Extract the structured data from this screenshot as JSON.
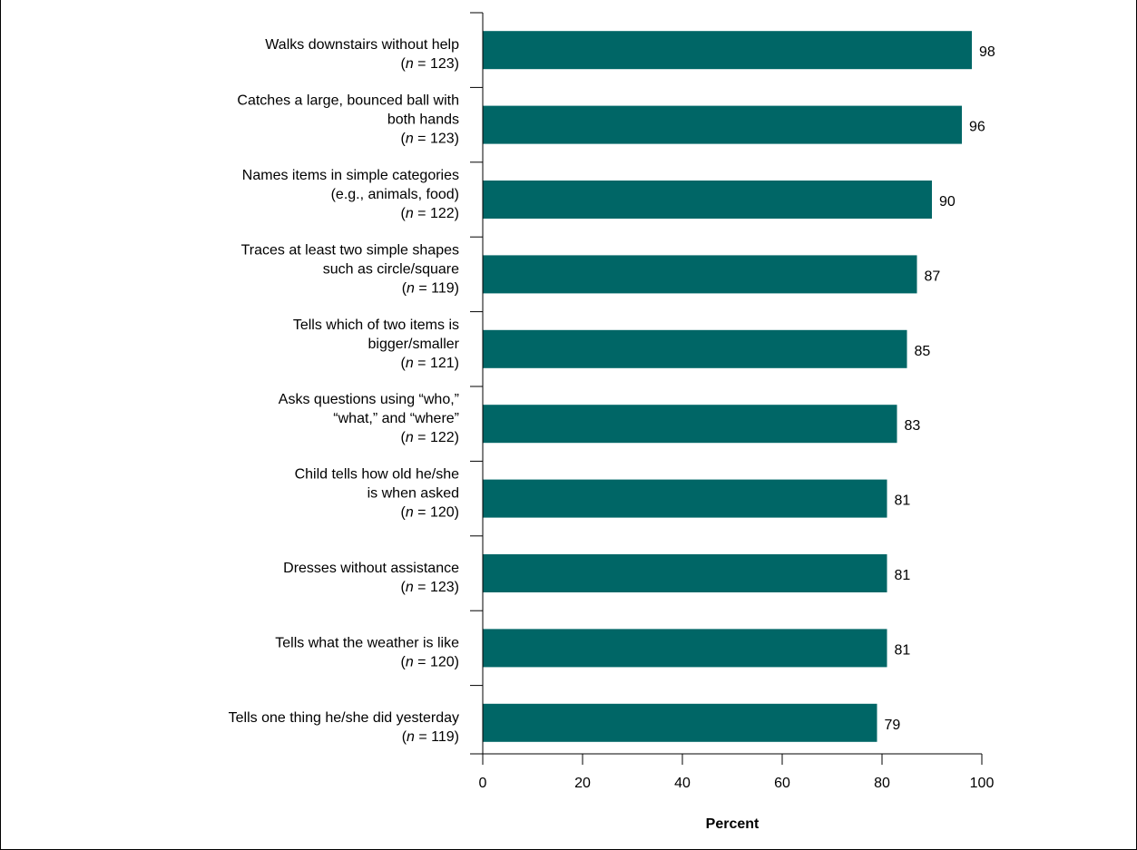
{
  "chart_data": {
    "type": "bar",
    "orientation": "horizontal",
    "categories": [
      {
        "lines": [
          "Walks downstairs without help"
        ],
        "n": "123"
      },
      {
        "lines": [
          "Catches a large, bounced ball with",
          "both hands"
        ],
        "n": "123"
      },
      {
        "lines": [
          "Names items in simple categories",
          "(e.g., animals, food)"
        ],
        "n": "122"
      },
      {
        "lines": [
          "Traces at least two simple shapes",
          "such as circle/square"
        ],
        "n": "119"
      },
      {
        "lines": [
          "Tells which of two items is",
          "bigger/smaller"
        ],
        "n": "121"
      },
      {
        "lines": [
          "Asks questions using “who,”",
          "“what,” and “where”"
        ],
        "n": "122"
      },
      {
        "lines": [
          "Child tells how old he/she",
          "is when asked"
        ],
        "n": "120"
      },
      {
        "lines": [
          "Dresses without assistance"
        ],
        "n": "123"
      },
      {
        "lines": [
          "Tells what the weather is like"
        ],
        "n": "120"
      },
      {
        "lines": [
          "Tells one thing he/she did yesterday"
        ],
        "n": "119"
      }
    ],
    "values": [
      98,
      96,
      90,
      87,
      85,
      83,
      81,
      81,
      81,
      79
    ],
    "value_labels": [
      "98",
      "96",
      "90",
      "87",
      "85",
      "83",
      "81",
      "81",
      "81",
      "79"
    ],
    "n_prefix": "n",
    "n_separator": " = ",
    "xlabel": "Percent",
    "xlim": [
      0,
      100
    ],
    "xticks": [
      0,
      20,
      40,
      60,
      80,
      100
    ],
    "xtick_labels": [
      "0",
      "20",
      "40",
      "60",
      "80",
      "100"
    ],
    "grid": false,
    "bar_color": "#006666"
  }
}
